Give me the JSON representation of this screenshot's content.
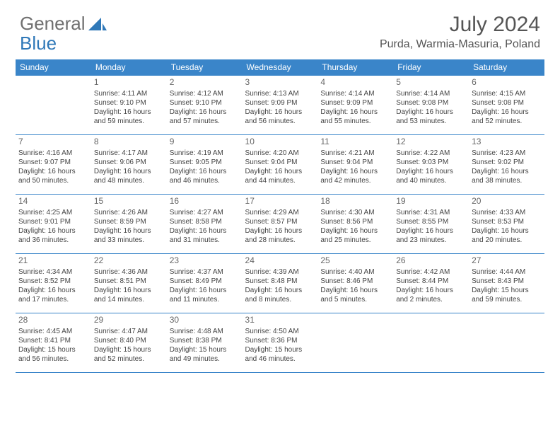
{
  "brand": {
    "part1": "General",
    "part2": "Blue"
  },
  "title": "July 2024",
  "location": "Purda, Warmia-Masuria, Poland",
  "colors": {
    "header_bg": "#3a85c9",
    "header_text": "#ffffff",
    "border": "#3a85c9",
    "text": "#444444",
    "brand_gray": "#707070",
    "brand_blue": "#2f78b8"
  },
  "weekdays": [
    "Sunday",
    "Monday",
    "Tuesday",
    "Wednesday",
    "Thursday",
    "Friday",
    "Saturday"
  ],
  "weeks": [
    [
      {
        "day": "",
        "lines": []
      },
      {
        "day": "1",
        "lines": [
          "Sunrise: 4:11 AM",
          "Sunset: 9:10 PM",
          "Daylight: 16 hours",
          "and 59 minutes."
        ]
      },
      {
        "day": "2",
        "lines": [
          "Sunrise: 4:12 AM",
          "Sunset: 9:10 PM",
          "Daylight: 16 hours",
          "and 57 minutes."
        ]
      },
      {
        "day": "3",
        "lines": [
          "Sunrise: 4:13 AM",
          "Sunset: 9:09 PM",
          "Daylight: 16 hours",
          "and 56 minutes."
        ]
      },
      {
        "day": "4",
        "lines": [
          "Sunrise: 4:14 AM",
          "Sunset: 9:09 PM",
          "Daylight: 16 hours",
          "and 55 minutes."
        ]
      },
      {
        "day": "5",
        "lines": [
          "Sunrise: 4:14 AM",
          "Sunset: 9:08 PM",
          "Daylight: 16 hours",
          "and 53 minutes."
        ]
      },
      {
        "day": "6",
        "lines": [
          "Sunrise: 4:15 AM",
          "Sunset: 9:08 PM",
          "Daylight: 16 hours",
          "and 52 minutes."
        ]
      }
    ],
    [
      {
        "day": "7",
        "lines": [
          "Sunrise: 4:16 AM",
          "Sunset: 9:07 PM",
          "Daylight: 16 hours",
          "and 50 minutes."
        ]
      },
      {
        "day": "8",
        "lines": [
          "Sunrise: 4:17 AM",
          "Sunset: 9:06 PM",
          "Daylight: 16 hours",
          "and 48 minutes."
        ]
      },
      {
        "day": "9",
        "lines": [
          "Sunrise: 4:19 AM",
          "Sunset: 9:05 PM",
          "Daylight: 16 hours",
          "and 46 minutes."
        ]
      },
      {
        "day": "10",
        "lines": [
          "Sunrise: 4:20 AM",
          "Sunset: 9:04 PM",
          "Daylight: 16 hours",
          "and 44 minutes."
        ]
      },
      {
        "day": "11",
        "lines": [
          "Sunrise: 4:21 AM",
          "Sunset: 9:04 PM",
          "Daylight: 16 hours",
          "and 42 minutes."
        ]
      },
      {
        "day": "12",
        "lines": [
          "Sunrise: 4:22 AM",
          "Sunset: 9:03 PM",
          "Daylight: 16 hours",
          "and 40 minutes."
        ]
      },
      {
        "day": "13",
        "lines": [
          "Sunrise: 4:23 AM",
          "Sunset: 9:02 PM",
          "Daylight: 16 hours",
          "and 38 minutes."
        ]
      }
    ],
    [
      {
        "day": "14",
        "lines": [
          "Sunrise: 4:25 AM",
          "Sunset: 9:01 PM",
          "Daylight: 16 hours",
          "and 36 minutes."
        ]
      },
      {
        "day": "15",
        "lines": [
          "Sunrise: 4:26 AM",
          "Sunset: 8:59 PM",
          "Daylight: 16 hours",
          "and 33 minutes."
        ]
      },
      {
        "day": "16",
        "lines": [
          "Sunrise: 4:27 AM",
          "Sunset: 8:58 PM",
          "Daylight: 16 hours",
          "and 31 minutes."
        ]
      },
      {
        "day": "17",
        "lines": [
          "Sunrise: 4:29 AM",
          "Sunset: 8:57 PM",
          "Daylight: 16 hours",
          "and 28 minutes."
        ]
      },
      {
        "day": "18",
        "lines": [
          "Sunrise: 4:30 AM",
          "Sunset: 8:56 PM",
          "Daylight: 16 hours",
          "and 25 minutes."
        ]
      },
      {
        "day": "19",
        "lines": [
          "Sunrise: 4:31 AM",
          "Sunset: 8:55 PM",
          "Daylight: 16 hours",
          "and 23 minutes."
        ]
      },
      {
        "day": "20",
        "lines": [
          "Sunrise: 4:33 AM",
          "Sunset: 8:53 PM",
          "Daylight: 16 hours",
          "and 20 minutes."
        ]
      }
    ],
    [
      {
        "day": "21",
        "lines": [
          "Sunrise: 4:34 AM",
          "Sunset: 8:52 PM",
          "Daylight: 16 hours",
          "and 17 minutes."
        ]
      },
      {
        "day": "22",
        "lines": [
          "Sunrise: 4:36 AM",
          "Sunset: 8:51 PM",
          "Daylight: 16 hours",
          "and 14 minutes."
        ]
      },
      {
        "day": "23",
        "lines": [
          "Sunrise: 4:37 AM",
          "Sunset: 8:49 PM",
          "Daylight: 16 hours",
          "and 11 minutes."
        ]
      },
      {
        "day": "24",
        "lines": [
          "Sunrise: 4:39 AM",
          "Sunset: 8:48 PM",
          "Daylight: 16 hours",
          "and 8 minutes."
        ]
      },
      {
        "day": "25",
        "lines": [
          "Sunrise: 4:40 AM",
          "Sunset: 8:46 PM",
          "Daylight: 16 hours",
          "and 5 minutes."
        ]
      },
      {
        "day": "26",
        "lines": [
          "Sunrise: 4:42 AM",
          "Sunset: 8:44 PM",
          "Daylight: 16 hours",
          "and 2 minutes."
        ]
      },
      {
        "day": "27",
        "lines": [
          "Sunrise: 4:44 AM",
          "Sunset: 8:43 PM",
          "Daylight: 15 hours",
          "and 59 minutes."
        ]
      }
    ],
    [
      {
        "day": "28",
        "lines": [
          "Sunrise: 4:45 AM",
          "Sunset: 8:41 PM",
          "Daylight: 15 hours",
          "and 56 minutes."
        ]
      },
      {
        "day": "29",
        "lines": [
          "Sunrise: 4:47 AM",
          "Sunset: 8:40 PM",
          "Daylight: 15 hours",
          "and 52 minutes."
        ]
      },
      {
        "day": "30",
        "lines": [
          "Sunrise: 4:48 AM",
          "Sunset: 8:38 PM",
          "Daylight: 15 hours",
          "and 49 minutes."
        ]
      },
      {
        "day": "31",
        "lines": [
          "Sunrise: 4:50 AM",
          "Sunset: 8:36 PM",
          "Daylight: 15 hours",
          "and 46 minutes."
        ]
      },
      {
        "day": "",
        "lines": []
      },
      {
        "day": "",
        "lines": []
      },
      {
        "day": "",
        "lines": []
      }
    ]
  ]
}
